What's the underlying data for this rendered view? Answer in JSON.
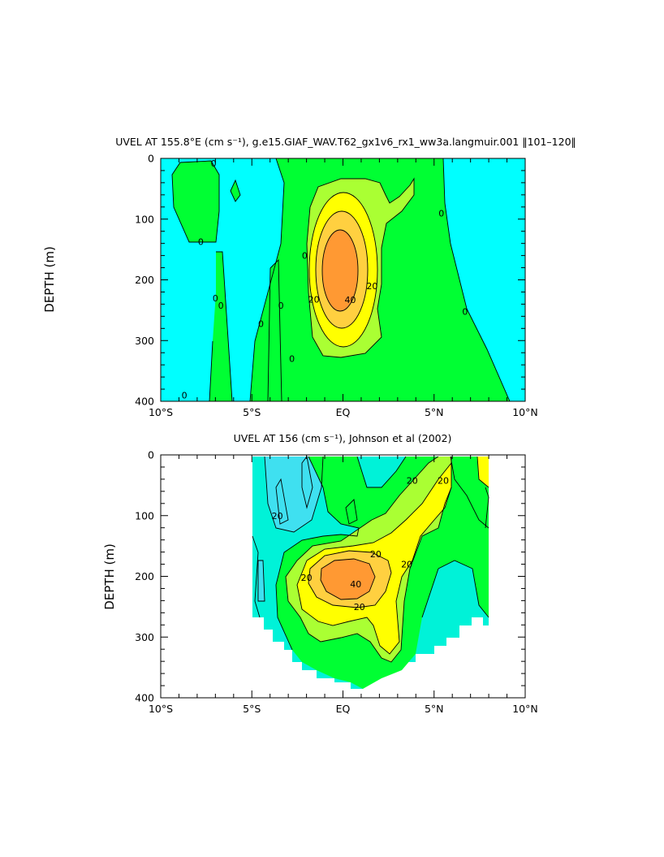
{
  "colors": {
    "c_neg": "#00ffff",
    "c_m10_0_lower": "#00f2d8",
    "c_m20_m10": "#3fe0f0",
    "c_0_10": "#00ff33",
    "c_10_20": "#aaff33",
    "c_20_30": "#ffff00",
    "c_30_40": "#ffd040",
    "c_40_50": "#ff9933",
    "c_bg": "#ffffff",
    "axis": "#000000"
  },
  "chart_data": [
    {
      "type": "heatmap",
      "title": "UVEL AT 155.8°E (cm s⁻¹), g.e15.GIAF_WAV.T62_gx1v6_rx1_ww3a.langmuir.001 ‖101–120‖",
      "xlabel": "",
      "ylabel": "DEPTH (m)",
      "xlim": [
        -10,
        10
      ],
      "ylim": [
        400,
        0
      ],
      "xticks": [
        -10,
        -5,
        0,
        5,
        10
      ],
      "xtick_labels": [
        "10°S",
        "5°S",
        "EQ",
        "5°N",
        "10°N"
      ],
      "yticks": [
        0,
        100,
        200,
        300,
        400
      ],
      "ytick_labels": [
        "0",
        "100",
        "200",
        "300",
        "400"
      ],
      "contour_interval": 10,
      "contour_labels": [
        {
          "text": "0",
          "lat": -7.1,
          "depth": 8
        },
        {
          "text": "0",
          "lat": -7.8,
          "depth": 137
        },
        {
          "text": "0",
          "lat": -7.0,
          "depth": 230
        },
        {
          "text": "0",
          "lat": -6.7,
          "depth": 242
        },
        {
          "text": "0",
          "lat": -8.7,
          "depth": 390
        },
        {
          "text": "0",
          "lat": -4.5,
          "depth": 272
        },
        {
          "text": "0",
          "lat": -3.4,
          "depth": 242
        },
        {
          "text": "0",
          "lat": -2.8,
          "depth": 330
        },
        {
          "text": "0",
          "lat": -2.1,
          "depth": 160
        },
        {
          "text": "20",
          "lat": -1.6,
          "depth": 232
        },
        {
          "text": "40",
          "lat": 0.4,
          "depth": 233
        },
        {
          "text": "20",
          "lat": 1.6,
          "depth": 210
        },
        {
          "text": "0",
          "lat": 5.4,
          "depth": 90
        },
        {
          "text": "0",
          "lat": 6.7,
          "depth": 252
        }
      ]
    },
    {
      "type": "heatmap",
      "title": "UVEL AT 156 (cm s⁻¹), Johnson et al (2002)",
      "xlabel": "",
      "ylabel": "DEPTH (m)",
      "xlim": [
        -10,
        10
      ],
      "ylim": [
        400,
        0
      ],
      "xticks": [
        -10,
        -5,
        0,
        5,
        10
      ],
      "xtick_labels": [
        "10°S",
        "5°S",
        "EQ",
        "5°N",
        "10°N"
      ],
      "yticks": [
        0,
        100,
        200,
        300,
        400
      ],
      "ytick_labels": [
        "0",
        "100",
        "200",
        "300",
        "400"
      ],
      "contour_interval": 10,
      "data_extent_lat": [
        -5,
        8
      ],
      "contour_labels": [
        {
          "text": "20",
          "lat": -3.6,
          "depth": 100
        },
        {
          "text": "20",
          "lat": 1.8,
          "depth": 163
        },
        {
          "text": "20",
          "lat": 3.8,
          "depth": 42
        },
        {
          "text": "20",
          "lat": 5.5,
          "depth": 42
        },
        {
          "text": "20",
          "lat": -2.0,
          "depth": 202
        },
        {
          "text": "40",
          "lat": 0.7,
          "depth": 213
        },
        {
          "text": "20",
          "lat": 0.9,
          "depth": 250
        },
        {
          "text": "20",
          "lat": 3.5,
          "depth": 180
        }
      ]
    }
  ]
}
